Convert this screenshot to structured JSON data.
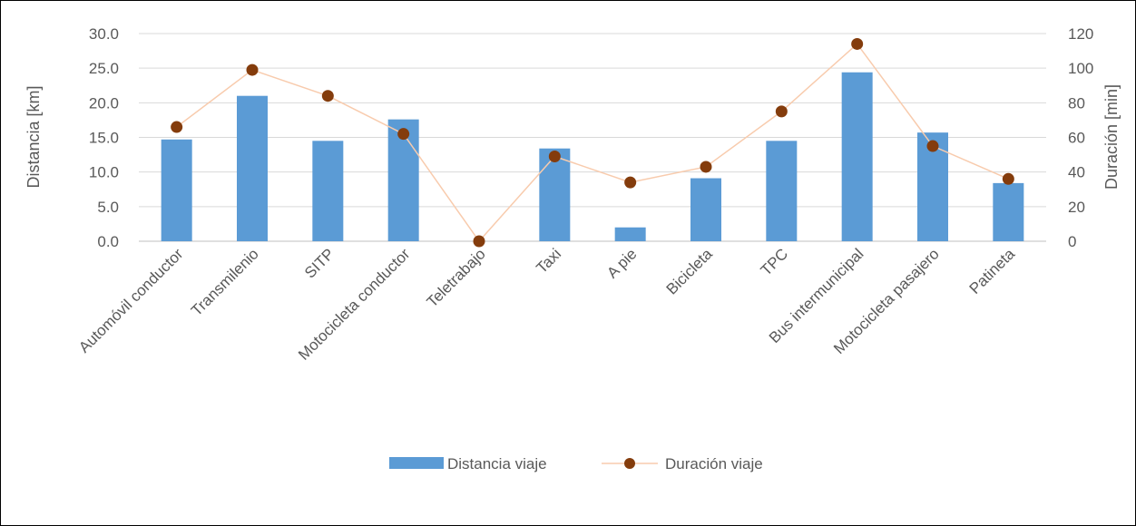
{
  "chart_data": {
    "type": "bar",
    "categories": [
      "Automóvil conductor",
      "Transmilenio",
      "SITP",
      "Motocicleta conductor",
      "Teletrabajo",
      "Taxi",
      "A pie",
      "Bicicleta",
      "TPC",
      "Bus intermunicipal",
      "Motocicleta pasajero",
      "Patineta"
    ],
    "series": [
      {
        "name": "Distancia viaje",
        "type": "bar",
        "axis": "left",
        "color": "#5B9BD5",
        "values": [
          14.7,
          21.0,
          14.5,
          17.6,
          0.0,
          13.4,
          2.0,
          9.1,
          14.5,
          24.4,
          15.7,
          8.4
        ]
      },
      {
        "name": "Duración viaje",
        "type": "line",
        "axis": "right",
        "line_color": "#F8CBAD",
        "marker_color": "#843C0C",
        "values": [
          66,
          99,
          84,
          62,
          0,
          49,
          34,
          43,
          75,
          114,
          55,
          36
        ]
      }
    ],
    "ylabel": "Distancia [km]",
    "y2label": "Duración [min]",
    "ylim": [
      0,
      30
    ],
    "y2lim": [
      0,
      120
    ],
    "yticks": [
      "0.0",
      "5.0",
      "10.0",
      "15.0",
      "20.0",
      "25.0",
      "30.0"
    ],
    "y2ticks": [
      "0",
      "20",
      "40",
      "60",
      "80",
      "100",
      "120"
    ],
    "grid": true,
    "legend_position": "bottom"
  }
}
